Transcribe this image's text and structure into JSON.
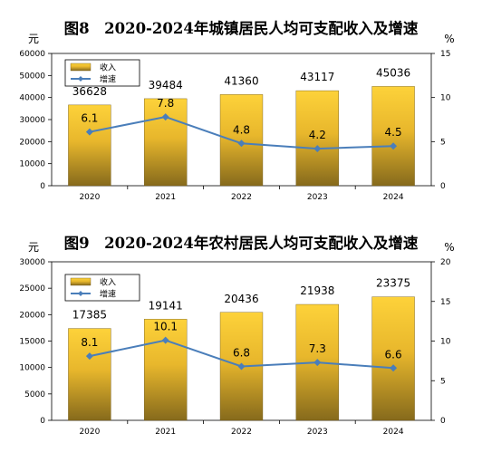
{
  "chart_data": [
    {
      "type": "bar",
      "title": "图8　2020-2024年城镇居民人均可支配收入及增速",
      "y_unit": "元",
      "y2_unit": "%",
      "categories": [
        "2020",
        "2021",
        "2022",
        "2023",
        "2024"
      ],
      "series": [
        {
          "name": "收入",
          "type": "bar",
          "axis": "left",
          "values": [
            36628,
            39484,
            41360,
            43117,
            45036
          ],
          "labels": [
            "36628",
            "39484",
            "41360",
            "43117",
            "45036"
          ]
        },
        {
          "name": "增速",
          "type": "line",
          "axis": "right",
          "values": [
            6.1,
            7.8,
            4.8,
            4.2,
            4.5
          ],
          "labels": [
            "6.1",
            "7.8",
            "4.8",
            "4.2",
            "4.5"
          ]
        }
      ],
      "ylim": [
        0,
        60000
      ],
      "y_ticks": [
        "0",
        "10000",
        "20000",
        "30000",
        "40000",
        "50000",
        "60000"
      ],
      "y2lim": [
        0,
        15
      ],
      "y2_ticks": [
        "0",
        "5",
        "10",
        "15"
      ],
      "legend": "top-left",
      "grid": false,
      "colors": {
        "bar_top": "#fdd23a",
        "bar_bottom": "#866a1c",
        "line": "#4a7eba"
      }
    },
    {
      "type": "bar",
      "title": "图9　2020-2024年农村居民人均可支配收入及增速",
      "y_unit": "元",
      "y2_unit": "%",
      "categories": [
        "2020",
        "2021",
        "2022",
        "2023",
        "2024"
      ],
      "series": [
        {
          "name": "收入",
          "type": "bar",
          "axis": "left",
          "values": [
            17385,
            19141,
            20436,
            21938,
            23375
          ],
          "labels": [
            "17385",
            "19141",
            "20436",
            "21938",
            "23375"
          ]
        },
        {
          "name": "增速",
          "type": "line",
          "axis": "right",
          "values": [
            8.1,
            10.1,
            6.8,
            7.3,
            6.6
          ],
          "labels": [
            "8.1",
            "10.1",
            "6.8",
            "7.3",
            "6.6"
          ]
        }
      ],
      "ylim": [
        0,
        30000
      ],
      "y_ticks": [
        "0",
        "5000",
        "10000",
        "15000",
        "20000",
        "25000",
        "30000"
      ],
      "y2lim": [
        0,
        20
      ],
      "y2_ticks": [
        "0",
        "5",
        "10",
        "15",
        "20"
      ],
      "legend": "top-left",
      "grid": false,
      "colors": {
        "bar_top": "#fdd23a",
        "bar_bottom": "#866a1c",
        "line": "#4a7eba"
      }
    }
  ]
}
